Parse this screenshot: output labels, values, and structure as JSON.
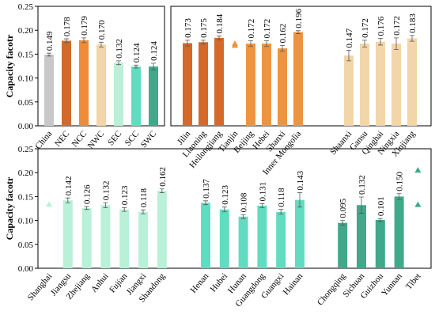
{
  "chart_data": [
    {
      "type": "bar",
      "ylabel": "Capacity facotr",
      "categories": [
        "China",
        "NEC",
        "NCC",
        "NWC",
        "SEC",
        "SCC",
        "SWC"
      ],
      "values": [
        0.149,
        0.178,
        0.179,
        0.17,
        0.132,
        0.124,
        0.124
      ],
      "value_labels": [
        "0.149",
        "0.178",
        "0.179",
        "0.170",
        "0.132",
        "0.124",
        "0.124"
      ],
      "errors": [
        0.003,
        0.004,
        0.005,
        0.005,
        0.004,
        0.003,
        0.007
      ],
      "colors": [
        "#c8c8c8",
        "#d4692a",
        "#ee8c3a",
        "#f2d5a8",
        "#b8f0d8",
        "#62dcc0",
        "#3fa98a"
      ],
      "ylim": [
        0,
        0.25
      ],
      "yticks": [
        {
          "value": 0,
          "label": "0.00"
        },
        {
          "value": 0.05,
          "label": "0.05"
        },
        {
          "value": 0.1,
          "label": "0.10"
        },
        {
          "value": 0.15,
          "label": "0.15"
        },
        {
          "value": 0.2,
          "label": "0.20"
        },
        {
          "value": 0.25,
          "label": "0.25"
        }
      ]
    },
    {
      "type": "bar",
      "categories": [
        "Jilin",
        "Liaoning",
        "Heilongjiang",
        "Tianjin",
        "Beijing",
        "Hebei",
        "Shanxi",
        "Inner Mongolia",
        "Shaanxi",
        "Gansu",
        "Qinghai",
        "Ningxia",
        "Xinjiang"
      ],
      "values": [
        0.173,
        0.175,
        0.184,
        null,
        0.172,
        0.172,
        0.162,
        0.196,
        0.147,
        0.172,
        0.176,
        0.172,
        0.183
      ],
      "value_labels": [
        "0.173",
        "0.175",
        "0.184",
        null,
        "0.172",
        "0.172",
        "0.162",
        "0.196",
        "0.147",
        "0.172",
        "0.176",
        "0.172",
        "0.183"
      ],
      "errors": [
        0.006,
        0.004,
        0.004,
        null,
        0.006,
        0.006,
        0.006,
        0.003,
        0.011,
        0.007,
        0.007,
        0.012,
        0.006
      ],
      "triangles": [
        null,
        null,
        null,
        [
          0.172,
          0.168
        ],
        null,
        null,
        null,
        null,
        null,
        null,
        null,
        null,
        null
      ],
      "colors": [
        "#d4692a",
        "#d4692a",
        "#d4692a",
        "#ee943e",
        "#ee943e",
        "#ee943e",
        "#ee943e",
        "#ee943e",
        "#f2d5a8",
        "#f2d5a8",
        "#f2d5a8",
        "#f2d5a8",
        "#f2d5a8"
      ],
      "ylim": [
        0,
        0.25
      ]
    },
    {
      "type": "bar",
      "ylabel": "Capacity facotr",
      "categories": [
        "Shanghai",
        "Jiangsu",
        "Zhejiang",
        "Anhui",
        "Fujian",
        "Jiangxi",
        "Shandong",
        "Henan",
        "Hubei",
        "Hunan",
        "Guangdong",
        "Guangxi",
        "Hainan",
        "Chongqing",
        "Sichuan",
        "Guizhou",
        "Yunnan",
        "Tibet"
      ],
      "values": [
        null,
        0.142,
        0.126,
        0.132,
        0.123,
        0.118,
        0.162,
        0.137,
        0.123,
        0.108,
        0.131,
        0.118,
        0.143,
        0.095,
        0.132,
        0.101,
        0.15,
        null
      ],
      "value_labels": [
        null,
        "0.142",
        "0.126",
        "0.132",
        "0.123",
        "0.118",
        "0.162",
        "0.137",
        "0.123",
        "0.108",
        "0.131",
        "0.118",
        "0.143",
        "0.095",
        "0.132",
        "0.101",
        "0.150",
        null
      ],
      "errors": [
        null,
        0.005,
        0.003,
        0.005,
        0.004,
        0.004,
        0.004,
        0.004,
        0.005,
        0.004,
        0.004,
        0.005,
        0.015,
        0.005,
        0.017,
        0.003,
        0.006,
        null
      ],
      "triangles": [
        [
          0.134
        ],
        null,
        null,
        null,
        null,
        null,
        null,
        null,
        null,
        null,
        null,
        null,
        null,
        null,
        null,
        null,
        null,
        [
          0.205,
          0.133
        ]
      ],
      "colors": [
        "#b8f0d8",
        "#b8f0d8",
        "#b8f0d8",
        "#b8f0d8",
        "#b8f0d8",
        "#b8f0d8",
        "#b8f0d8",
        "#62dcc0",
        "#62dcc0",
        "#62dcc0",
        "#62dcc0",
        "#62dcc0",
        "#62dcc0",
        "#3fa98a",
        "#3fa98a",
        "#3fa98a",
        "#3fa98a",
        "#3fa98a"
      ],
      "ylim": [
        0,
        0.25
      ],
      "yticks": [
        {
          "value": 0,
          "label": "0.00"
        },
        {
          "value": 0.05,
          "label": "0.05"
        },
        {
          "value": 0.1,
          "label": "0.10"
        },
        {
          "value": 0.15,
          "label": "0.15"
        },
        {
          "value": 0.2,
          "label": "0.20"
        },
        {
          "value": 0.25,
          "label": "0.25"
        }
      ]
    }
  ]
}
